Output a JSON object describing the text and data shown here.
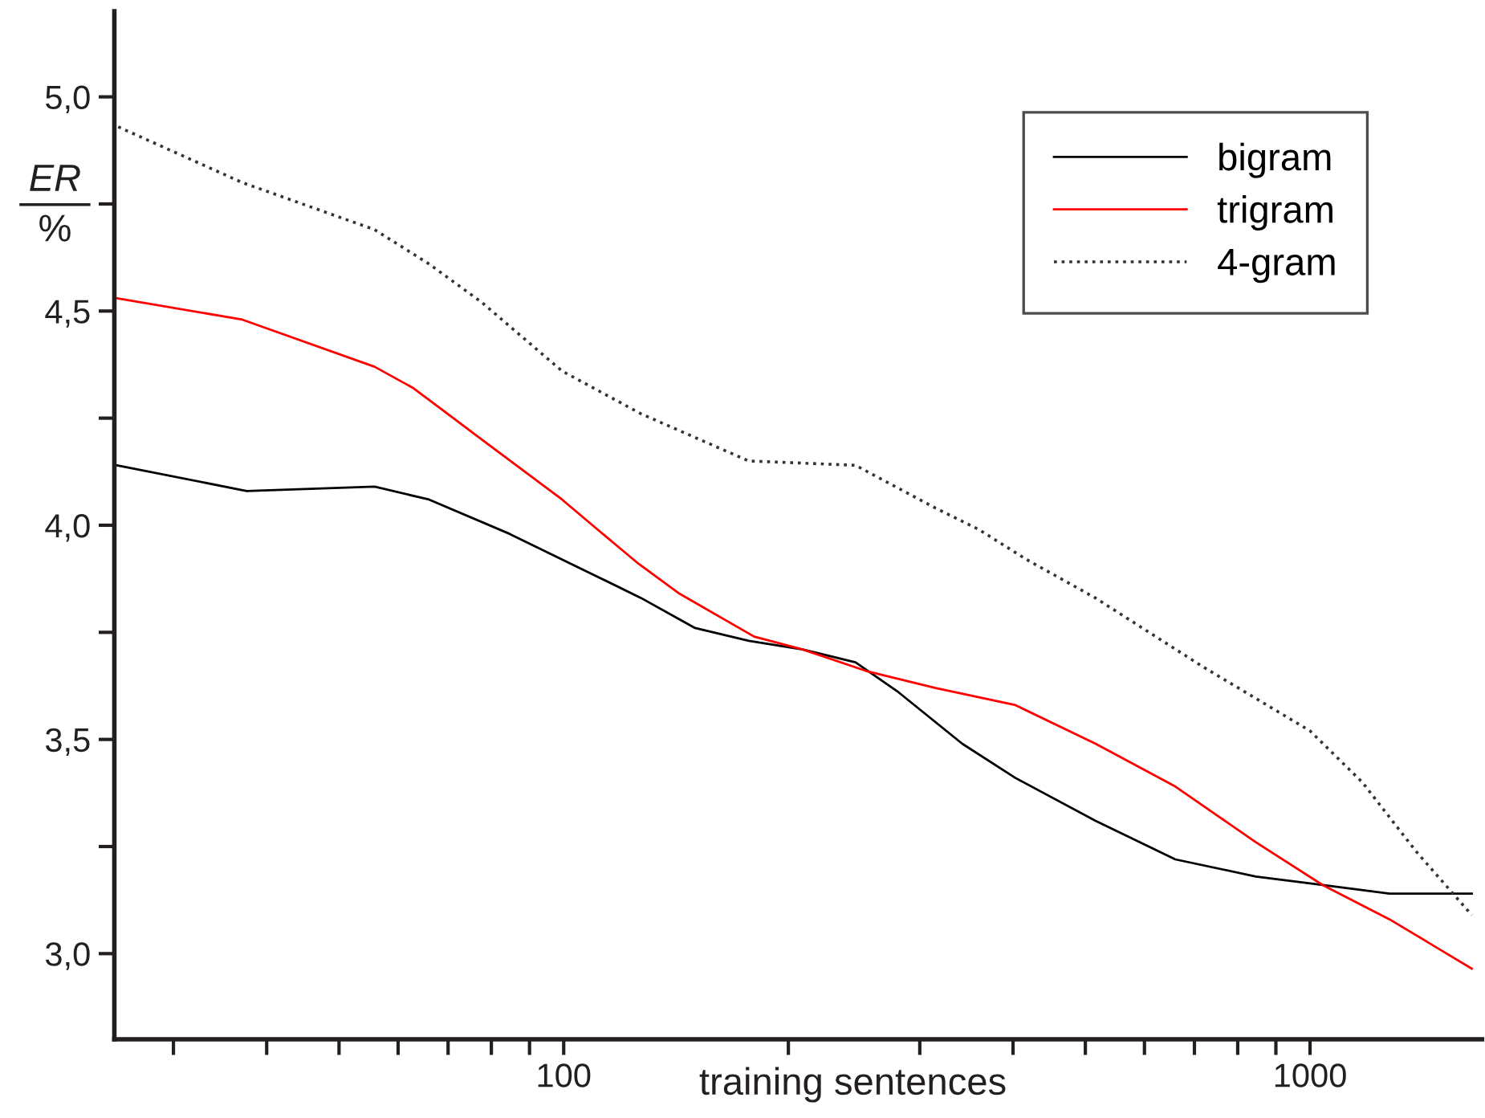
{
  "chart_data": {
    "type": "line",
    "xlabel": "training sentences",
    "ylabel": "ER\n%",
    "log": "x",
    "xlim": [
      25,
      1700
    ],
    "ylim": [
      2.8,
      5.2
    ],
    "xticks": [
      {
        "value": 30,
        "label": null
      },
      {
        "value": 40,
        "label": null
      },
      {
        "value": 50,
        "label": null
      },
      {
        "value": 60,
        "label": null
      },
      {
        "value": 70,
        "label": null
      },
      {
        "value": 80,
        "label": null
      },
      {
        "value": 90,
        "label": null
      },
      100,
      {
        "value": 200,
        "label": null
      },
      {
        "value": 300,
        "label": null
      },
      {
        "value": 400,
        "label": null
      },
      {
        "value": 500,
        "label": null
      },
      {
        "value": 600,
        "label": null
      },
      {
        "value": 700,
        "label": null
      },
      {
        "value": 800,
        "label": null
      },
      {
        "value": 900,
        "label": null
      },
      1000
    ],
    "yticks": [
      {
        "value": 3.0,
        "label": "3,0"
      },
      {
        "value": 3.25,
        "label": null
      },
      {
        "value": 3.5,
        "label": "3,5"
      },
      {
        "value": 3.75,
        "label": null
      },
      {
        "value": 4.0,
        "label": "4,0"
      },
      {
        "value": 4.25,
        "label": null
      },
      {
        "value": 4.5,
        "label": "4,5"
      },
      {
        "value": 4.75,
        "label": null
      },
      {
        "value": 5.0,
        "label": "5,0"
      }
    ],
    "grid": false,
    "legend": "top right",
    "marker": "none",
    "series": [
      {
        "name": "bigram",
        "color": "#000000",
        "line_style": "solid",
        "x": [
          25.2,
          37.6,
          55.8,
          66,
          84.6,
          108,
          127,
          150,
          177,
          209,
          246,
          281,
          342,
          403,
          516,
          660,
          846,
          1040,
          1278,
          1647
        ],
        "values": [
          4.14,
          4.08,
          4.09,
          4.06,
          3.98,
          3.89,
          3.83,
          3.76,
          3.73,
          3.71,
          3.68,
          3.61,
          3.49,
          3.41,
          3.31,
          3.22,
          3.18,
          3.16,
          3.14,
          3.14
        ]
      },
      {
        "name": "trigram",
        "color": "#ff0000",
        "line_style": "solid",
        "x": [
          25.2,
          37.1,
          55.8,
          62.9,
          77.7,
          99.5,
          111,
          126,
          143,
          180,
          209,
          254,
          315,
          403,
          516,
          660,
          846,
          1040,
          1278,
          1647
        ],
        "values": [
          4.53,
          4.48,
          4.37,
          4.32,
          4.2,
          4.06,
          3.99,
          3.91,
          3.84,
          3.74,
          3.71,
          3.66,
          3.62,
          3.58,
          3.49,
          3.39,
          3.26,
          3.16,
          3.08,
          2.965
        ]
      },
      {
        "name": "4-gram",
        "color": "#333333",
        "line_style": "dotted",
        "x": [
          25.3,
          37.1,
          55.8,
          66,
          77.7,
          99.5,
          127,
          177,
          246,
          315,
          360,
          417,
          516,
          718,
          1000,
          1175,
          1385,
          1647
        ],
        "values": [
          4.93,
          4.8,
          4.69,
          4.61,
          4.52,
          4.36,
          4.26,
          4.15,
          4.14,
          4.04,
          3.99,
          3.92,
          3.83,
          3.67,
          3.52,
          3.4,
          3.24,
          3.09
        ]
      }
    ]
  }
}
